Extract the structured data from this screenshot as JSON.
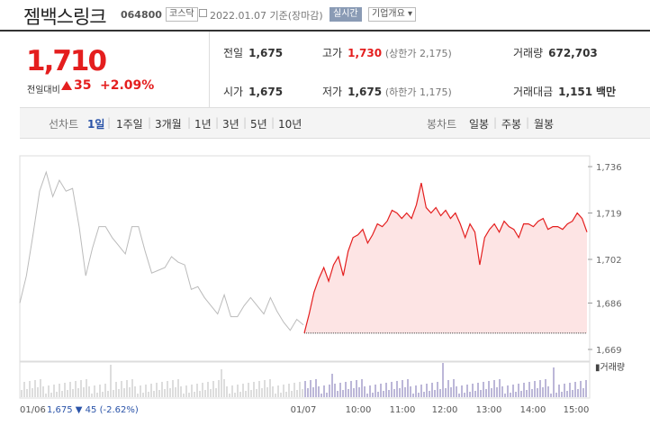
{
  "header": {
    "name": "젬백스링크",
    "code": "064800",
    "market": "코스닥",
    "date": "2022.01.07 기준(장마감)",
    "realtime": "실시간",
    "corp_info": "기업개요"
  },
  "summary": {
    "price": "1,710",
    "change_label": "전일대비",
    "change": "35",
    "change_pct": "+2.09%",
    "prev_close_label": "전일",
    "prev_close": "1,675",
    "open_label": "시가",
    "open": "1,675",
    "high_label": "고가",
    "high": "1,730",
    "high_sub": "(상한가 2,175)",
    "low_label": "저가",
    "low": "1,675",
    "low_sub": "(하한가 1,175)",
    "volume_label": "거래량",
    "volume": "672,703",
    "amount_label": "거래대금",
    "amount": "1,151",
    "amount_unit": "백만"
  },
  "tabs": {
    "line_label": "선차트",
    "line_items": [
      "1일",
      "1주일",
      "3개월",
      "1년",
      "3년",
      "5년",
      "10년"
    ],
    "candle_label": "봉차트",
    "candle_items": [
      "일봉",
      "주봉",
      "월봉"
    ]
  },
  "colors": {
    "up": "#e41e1e",
    "prev": "#bbbbbb",
    "accent": "#2a53a8"
  },
  "chart_data": {
    "type": "line",
    "y_ticks": [
      "1,736",
      "1,719",
      "1,702",
      "1,686",
      "1,669"
    ],
    "ylim": [
      1669,
      1736
    ],
    "x_ticks": [
      "01/06",
      "01/07",
      "10:00",
      "11:00",
      "12:00",
      "13:00",
      "14:00",
      "15:00"
    ],
    "prev_day_label": "01/06",
    "prev_day_close": "1,675",
    "prev_day_change": "45",
    "prev_day_pct": "(-2.62%)",
    "volume_legend": "거래량",
    "series": [
      {
        "values": [
          1686,
          1696,
          1711,
          1727,
          1734,
          1725,
          1731,
          1727,
          1728,
          1714,
          1696,
          1706,
          1714,
          1714,
          1710,
          1707,
          1704,
          1714,
          1714,
          1705,
          1697,
          1698,
          1699,
          1703,
          1701,
          1700,
          1691,
          1692,
          1688,
          1685,
          1682,
          1689,
          1681,
          1681,
          1685,
          1688,
          1685,
          1682,
          1688,
          1683,
          1679,
          1676,
          1680,
          1678
        ]
      },
      {
        "values": [
          1675,
          1682,
          1690,
          1695,
          1699,
          1694,
          1700,
          1703,
          1696,
          1705,
          1710,
          1711,
          1713,
          1708,
          1711,
          1715,
          1714,
          1716,
          1720,
          1719,
          1717,
          1719,
          1717,
          1722,
          1730,
          1721,
          1719,
          1721,
          1718,
          1720,
          1717,
          1719,
          1715,
          1710,
          1715,
          1712,
          1700,
          1710,
          1713,
          1715,
          1712,
          1716,
          1714,
          1713,
          1710,
          1715,
          1715,
          1714,
          1716,
          1717,
          1713,
          1714,
          1714,
          1713,
          1715,
          1716,
          1719,
          1717,
          1712
        ]
      }
    ]
  }
}
